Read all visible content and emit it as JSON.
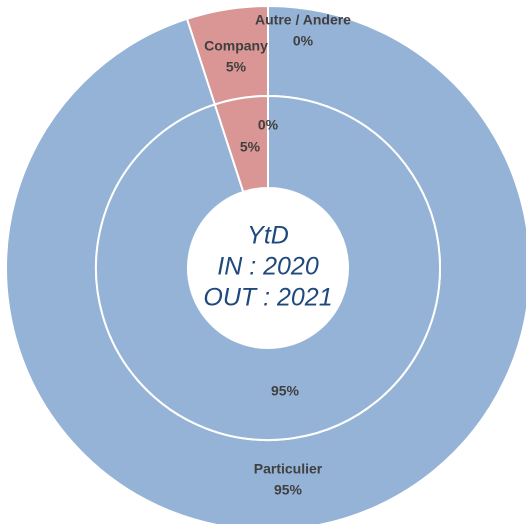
{
  "chart_data": {
    "type": "donut",
    "categories": [
      "Particulier",
      "Company",
      "Autre / Andere"
    ],
    "colors": [
      "#95b3d7",
      "#d99694"
    ],
    "rings": [
      {
        "values": [
          95,
          5,
          0
        ],
        "value_labels": [
          "95%",
          "5%",
          "0%"
        ]
      },
      {
        "values": [
          95,
          5,
          0
        ],
        "value_labels": [
          "95%",
          "5%",
          "0%"
        ]
      }
    ],
    "center_text": [
      "YtD",
      "IN : 2020",
      "OUT : 2021"
    ]
  }
}
